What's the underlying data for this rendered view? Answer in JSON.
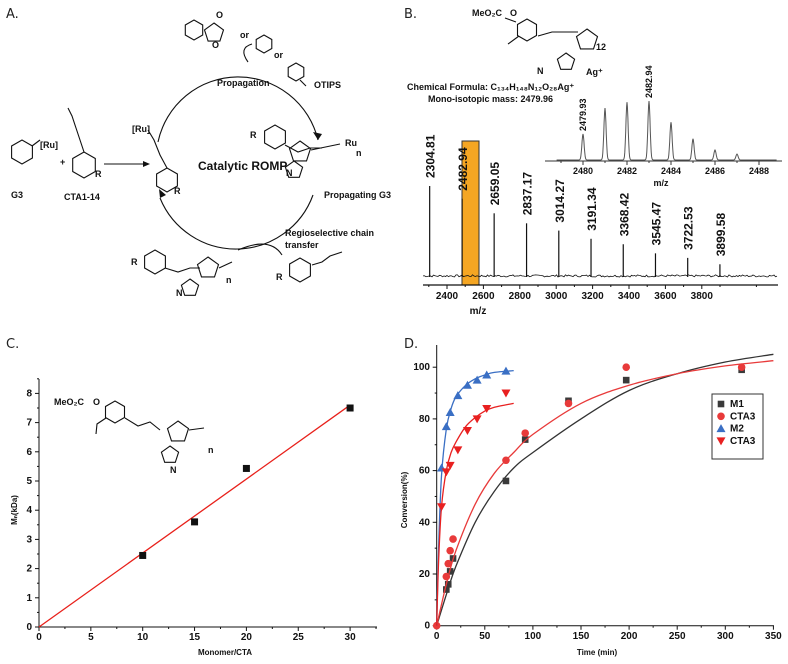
{
  "panel_a": {
    "label": "A.",
    "center_title": "Catalytic ROMP",
    "propagation": "Propagation",
    "propagating": "Propagating G3",
    "chain_transfer_1": "Regioselective chain",
    "chain_transfer_2": "transfer",
    "g3": "G3",
    "cta": "CTA1-14",
    "or1": "or",
    "or2": "or",
    "otips": "OTIPS",
    "ru": "[Ru]",
    "ru2": "Ru",
    "r": "R",
    "n": "n",
    "o": "O",
    "nitrogen": "N",
    "plus": "+"
  },
  "chart_data": [
    {
      "panel": "B.",
      "type": "bar",
      "subtype": "mass-spectrum",
      "xlabel": "m/z",
      "xlim": [
        2260,
        4220
      ],
      "xticks": [
        2400,
        2600,
        2800,
        3000,
        3200,
        3400,
        3600,
        3800
      ],
      "peaks_mz": [
        2304.81,
        2482.94,
        2659.05,
        2837.17,
        3014.27,
        3191.34,
        3368.42,
        3545.47,
        3722.53,
        3899.58
      ],
      "peak_labels": [
        "2304.81",
        "2482.94",
        "2659.05",
        "2837.17",
        "3014.27",
        "3191.34",
        "3368.42",
        "3545.47",
        "3722.53",
        "3899.58"
      ],
      "relative_intensity": [
        100,
        86,
        70,
        59,
        51,
        42,
        36,
        26,
        21,
        14
      ],
      "highlight_peak": "2482.94",
      "highlight_color": "#f5a623",
      "formula": "Chemical Formula: C₁₃₄H₁₄₈N₁₂O₂₈Ag⁺",
      "mass": "Mono-isotopic mass: 2479.96",
      "structure_labels": {
        "ester": "MeO₂C",
        "o": "O",
        "n12": "12",
        "ag": "Ag⁺",
        "nitrogen": "N"
      },
      "inset": {
        "type": "line",
        "xlabel": "m/z",
        "xlim": [
          2478.8,
          2488.8
        ],
        "xticks": [
          2480,
          2482,
          2484,
          2486,
          2488
        ],
        "isotope_mz": [
          2480,
          2481,
          2482,
          2483,
          2484,
          2485,
          2486,
          2487
        ],
        "relative_intensity": [
          44,
          88,
          98,
          100,
          64,
          36,
          17,
          10
        ],
        "peak_labels": [
          {
            "mz": 2480,
            "text": "2479.93"
          },
          {
            "mz": 2483,
            "text": "2482.94"
          }
        ]
      }
    },
    {
      "panel": "C.",
      "type": "scatter",
      "xlabel": "Monomer/CTA",
      "ylabel": "Mₙ(kDa)",
      "xlim": [
        0,
        32.6
      ],
      "ylim": [
        0,
        8.5
      ],
      "xticks": [
        0,
        5,
        10,
        15,
        20,
        25,
        30
      ],
      "yticks": [
        0,
        1,
        2,
        3,
        4,
        5,
        6,
        7,
        8
      ],
      "points": [
        [
          10,
          2.45
        ],
        [
          15,
          3.6
        ],
        [
          20,
          5.43
        ],
        [
          30,
          7.5
        ]
      ],
      "fit_line": [
        [
          0,
          0
        ],
        [
          30,
          7.6
        ]
      ],
      "fit_color": "#e8201a",
      "structure_labels": {
        "ester": "MeO₂C",
        "o": "O",
        "n": "n",
        "nitrogen": "N"
      }
    },
    {
      "panel": "D.",
      "type": "scatter",
      "xlabel": "Time (min)",
      "ylabel": "Conversion(%)",
      "xlim": [
        0,
        350
      ],
      "ylim": [
        0,
        104
      ],
      "xticks": [
        0,
        50,
        100,
        150,
        200,
        250,
        300,
        350
      ],
      "yticks": [
        0,
        20,
        40,
        60,
        80,
        100
      ],
      "legend_position": "right",
      "series": [
        {
          "name": "M1",
          "marker": "square",
          "color": "#3a3a3a",
          "points": [
            [
              10,
              14
            ],
            [
              12,
              16
            ],
            [
              14,
              21
            ],
            [
              17,
              26
            ],
            [
              72,
              56
            ],
            [
              92,
              72
            ],
            [
              137,
              87
            ],
            [
              197,
              95
            ],
            [
              317,
              99
            ]
          ],
          "fit": [
            [
              0,
              0
            ],
            [
              10,
              12
            ],
            [
              20,
              23
            ],
            [
              40,
              40
            ],
            [
              60,
              52
            ],
            [
              80,
              61
            ],
            [
              100,
              67
            ],
            [
              150,
              80
            ],
            [
              200,
              91
            ],
            [
              250,
              97.5
            ],
            [
              300,
              102
            ],
            [
              350,
              105
            ]
          ]
        },
        {
          "name": "CTA3",
          "marker": "circle",
          "color": "#e83a3a",
          "points": [
            [
              0,
              0
            ],
            [
              10,
              19
            ],
            [
              12,
              24
            ],
            [
              14,
              29
            ],
            [
              17,
              33.5
            ],
            [
              72,
              64
            ],
            [
              92,
              74.5
            ],
            [
              137,
              86
            ],
            [
              197,
              100
            ],
            [
              317,
              100
            ]
          ],
          "fit": [
            [
              0,
              0
            ],
            [
              10,
              16
            ],
            [
              20,
              29
            ],
            [
              40,
              47
            ],
            [
              60,
              59
            ],
            [
              80,
              67
            ],
            [
              100,
              74
            ],
            [
              150,
              86
            ],
            [
              200,
              93
            ],
            [
              250,
              97.5
            ],
            [
              300,
              100.5
            ],
            [
              350,
              102.5
            ]
          ]
        },
        {
          "name": "M2",
          "marker": "triangle-up",
          "color": "#3a6fc4",
          "points": [
            [
              5,
              61
            ],
            [
              10,
              77
            ],
            [
              14,
              82.5
            ],
            [
              22,
              89
            ],
            [
              32,
              93
            ],
            [
              42,
              95
            ],
            [
              52,
              97
            ],
            [
              72,
              98.5
            ]
          ],
          "fit": [
            [
              0,
              0
            ],
            [
              2,
              30
            ],
            [
              5,
              58
            ],
            [
              10,
              76
            ],
            [
              15,
              84
            ],
            [
              20,
              88.5
            ],
            [
              30,
              93
            ],
            [
              40,
              95.5
            ],
            [
              50,
              97
            ],
            [
              60,
              98
            ],
            [
              80,
              98.7
            ]
          ]
        },
        {
          "name": "CTA3",
          "marker": "triangle-down",
          "color": "#e82020",
          "points": [
            [
              5,
              46
            ],
            [
              10,
              59.5
            ],
            [
              14,
              62
            ],
            [
              22,
              68
            ],
            [
              32,
              75.5
            ],
            [
              42,
              80
            ],
            [
              52,
              84
            ],
            [
              72,
              90
            ]
          ],
          "fit": [
            [
              0,
              0
            ],
            [
              2,
              25
            ],
            [
              5,
              46
            ],
            [
              10,
              60
            ],
            [
              15,
              67
            ],
            [
              20,
              71
            ],
            [
              30,
              77
            ],
            [
              40,
              80.5
            ],
            [
              50,
              83
            ],
            [
              60,
              84.5
            ],
            [
              80,
              86
            ]
          ]
        }
      ]
    }
  ]
}
